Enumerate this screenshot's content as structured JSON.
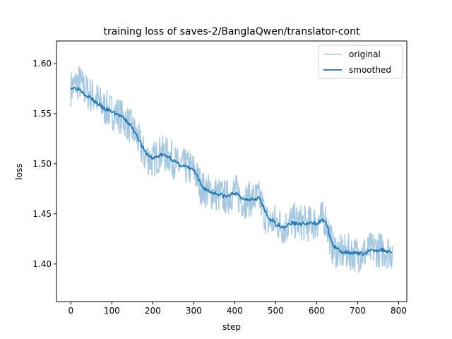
{
  "chart_data": {
    "type": "line",
    "title": "training loss of saves-2/BanglaQwen/translator-cont",
    "xlabel": "step",
    "ylabel": "loss",
    "xlim": [
      -35,
      820
    ],
    "ylim": [
      1.3625,
      1.6225
    ],
    "x_ticks": [
      0,
      100,
      200,
      300,
      400,
      500,
      600,
      700,
      800
    ],
    "y_ticks": [
      1.4,
      1.45,
      1.5,
      1.55,
      1.6
    ],
    "y_tick_labels": [
      "1.40",
      "1.45",
      "1.50",
      "1.55",
      "1.60"
    ],
    "legend": {
      "position": "upper right"
    },
    "x_max": 785,
    "series": [
      {
        "name": "original",
        "color": "#a6c8e1",
        "x": [
          0,
          20,
          40,
          60,
          80,
          100,
          120,
          140,
          160,
          180,
          200,
          220,
          240,
          260,
          280,
          300,
          320,
          340,
          360,
          380,
          400,
          420,
          440,
          460,
          480,
          500,
          520,
          540,
          560,
          580,
          600,
          620,
          640,
          660,
          680,
          700,
          720,
          740,
          760,
          785
        ],
        "values": [
          1.575,
          1.582,
          1.571,
          1.566,
          1.556,
          1.552,
          1.548,
          1.54,
          1.528,
          1.508,
          1.503,
          1.511,
          1.508,
          1.498,
          1.497,
          1.494,
          1.475,
          1.472,
          1.469,
          1.466,
          1.473,
          1.463,
          1.465,
          1.466,
          1.442,
          1.442,
          1.436,
          1.443,
          1.441,
          1.44,
          1.442,
          1.446,
          1.415,
          1.411,
          1.412,
          1.409,
          1.412,
          1.415,
          1.414,
          1.412
        ]
      },
      {
        "name": "smoothed",
        "color": "#1f77b4",
        "x": [
          0,
          20,
          40,
          60,
          80,
          100,
          120,
          140,
          160,
          180,
          200,
          220,
          240,
          260,
          280,
          300,
          320,
          340,
          360,
          380,
          400,
          420,
          440,
          460,
          480,
          500,
          520,
          540,
          560,
          580,
          600,
          620,
          640,
          660,
          680,
          700,
          720,
          740,
          760,
          785
        ],
        "values": [
          1.576,
          1.575,
          1.568,
          1.562,
          1.555,
          1.552,
          1.548,
          1.541,
          1.53,
          1.512,
          1.505,
          1.509,
          1.507,
          1.5,
          1.497,
          1.494,
          1.477,
          1.472,
          1.47,
          1.467,
          1.471,
          1.465,
          1.465,
          1.466,
          1.447,
          1.44,
          1.437,
          1.441,
          1.44,
          1.44,
          1.441,
          1.444,
          1.418,
          1.412,
          1.412,
          1.41,
          1.411,
          1.414,
          1.414,
          1.412
        ]
      }
    ]
  }
}
